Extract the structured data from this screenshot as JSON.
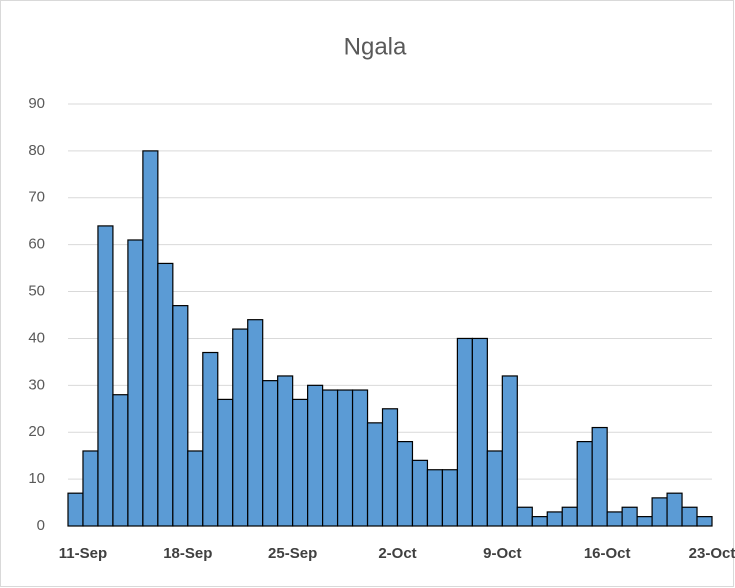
{
  "chart_data": {
    "type": "bar",
    "title": "Ngala",
    "categories": [
      "11-Sep",
      null,
      null,
      null,
      null,
      null,
      null,
      "18-Sep",
      null,
      null,
      null,
      null,
      null,
      null,
      "25-Sep",
      null,
      null,
      null,
      null,
      null,
      null,
      "2-Oct",
      null,
      null,
      null,
      null,
      null,
      null,
      "9-Oct",
      null,
      null,
      null,
      null,
      null,
      null,
      "16-Oct",
      null,
      null,
      null,
      null,
      null,
      null,
      "23-Oct"
    ],
    "values": [
      7,
      16,
      64,
      28,
      61,
      80,
      56,
      47,
      16,
      37,
      27,
      42,
      44,
      31,
      32,
      27,
      30,
      29,
      29,
      29,
      22,
      25,
      18,
      14,
      12,
      12,
      40,
      40,
      16,
      32,
      4,
      2,
      3,
      4,
      18,
      21,
      3,
      4,
      2,
      6,
      7,
      4,
      2
    ],
    "color": "#5b9bd5",
    "ylim": [
      0,
      90
    ],
    "yticks": [
      0,
      10,
      20,
      30,
      40,
      50,
      60,
      70,
      80,
      90
    ],
    "grid": true
  }
}
